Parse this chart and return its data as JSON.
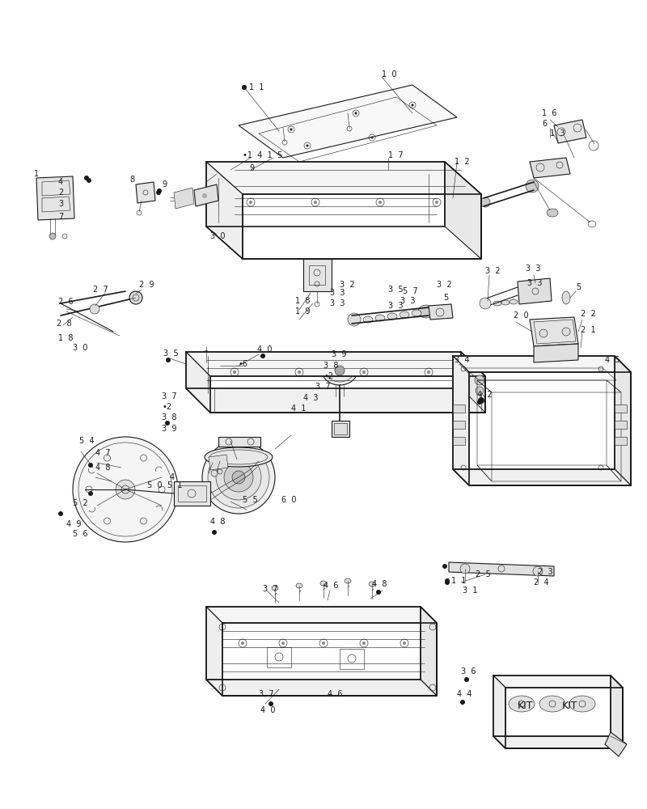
{
  "background_color": "#ffffff",
  "line_color": "#1a1a1a",
  "figure_width": 8.0,
  "figure_height": 10.0,
  "dpi": 100,
  "lw_main": 0.8,
  "lw_thin": 0.4,
  "lw_thick": 1.2
}
